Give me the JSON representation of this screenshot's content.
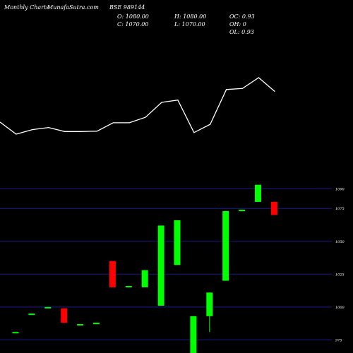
{
  "header": {
    "brand": "Monthly Charts",
    "site": "MunafaSutra.com",
    "symbol": "BSE 989144",
    "open": "O: 1080.00",
    "close": "C: 1070.00",
    "high": "H: 1080.00",
    "low": "L: 1070.00",
    "oc": "OC: 0.93",
    "oh": "OH: 0",
    "ol": "OL: 0.93"
  },
  "chart_data": {
    "type": "candlestick",
    "ylim": [
      965,
      1095
    ],
    "yticks": [
      {
        "value": 1090,
        "label": "1090"
      },
      {
        "value": 1075,
        "label": "1075"
      },
      {
        "value": 1050,
        "label": "1050"
      },
      {
        "value": 1025,
        "label": "1025"
      },
      {
        "value": 1000,
        "label": "1000"
      },
      {
        "value": 975,
        "label": "975"
      }
    ],
    "colors": {
      "up": "#00ff00",
      "down": "#ff0000",
      "grid": "#1a1a8c",
      "line": "#ffffff"
    },
    "candles": [
      {
        "open": 981,
        "high": 981,
        "low": 981,
        "close": 981,
        "dir": "up"
      },
      {
        "open": 995,
        "high": 995,
        "low": 995,
        "close": 995,
        "dir": "up"
      },
      {
        "open": 1000,
        "high": 1000,
        "low": 1000,
        "close": 1000,
        "dir": "up"
      },
      {
        "open": 999,
        "high": 999,
        "low": 988,
        "close": 988,
        "dir": "down"
      },
      {
        "open": 987,
        "high": 987,
        "low": 987,
        "close": 987,
        "dir": "up"
      },
      {
        "open": 988,
        "high": 988,
        "low": 988,
        "close": 988,
        "dir": "up"
      },
      {
        "open": 1035,
        "high": 1035,
        "low": 1015,
        "close": 1015,
        "dir": "down"
      },
      {
        "open": 1016,
        "high": 1016,
        "low": 1016,
        "close": 1016,
        "dir": "up"
      },
      {
        "open": 1015,
        "high": 1028,
        "low": 1015,
        "close": 1028,
        "dir": "up"
      },
      {
        "open": 1001,
        "high": 1062,
        "low": 1001,
        "close": 1062,
        "dir": "up"
      },
      {
        "open": 1032,
        "high": 1066,
        "low": 1032,
        "close": 1066,
        "dir": "up"
      },
      {
        "open": 965,
        "high": 993,
        "low": 965,
        "close": 993,
        "dir": "up"
      },
      {
        "open": 993,
        "high": 1011,
        "low": 981,
        "close": 1011,
        "dir": "up"
      },
      {
        "open": 1020,
        "high": 1073,
        "low": 1020,
        "close": 1073,
        "dir": "up"
      },
      {
        "open": 1073,
        "high": 1074,
        "low": 1073,
        "close": 1074,
        "dir": "up"
      },
      {
        "open": 1080,
        "high": 1093,
        "low": 1080,
        "close": 1093,
        "dir": "up"
      },
      {
        "open": 1080,
        "high": 1080,
        "low": 1070,
        "close": 1070,
        "dir": "down"
      }
    ],
    "line": [
      1144,
      1021,
      1067,
      1089,
      1048,
      1048,
      1051,
      1137,
      1137,
      1193,
      1345,
      1369,
      1037,
      1121,
      1476,
      1487,
      1597,
      1456
    ]
  }
}
